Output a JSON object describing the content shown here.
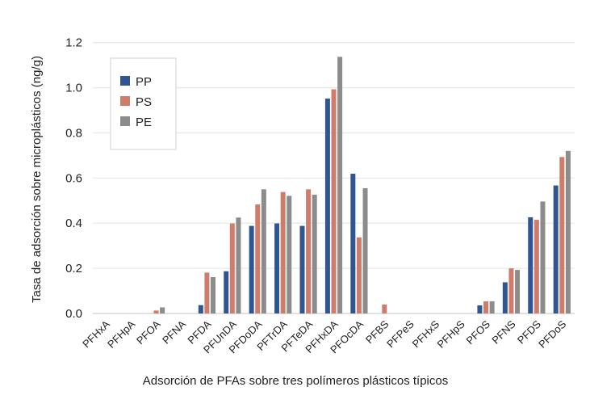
{
  "chart_data": {
    "type": "bar",
    "title": "",
    "xlabel": "Adsorción de PFAs sobre tres polímeros plásticos típicos",
    "ylabel": "Tasa de adsorción sobre microplásticos (ng/g)",
    "ylim": [
      0,
      1.2
    ],
    "yticks": [
      "0.0",
      "0.2",
      "0.4",
      "0.6",
      "0.8",
      "1.0",
      "1.2"
    ],
    "grid": true,
    "legend_position": "top-left",
    "categories": [
      "PFHxA",
      "PFHpA",
      "PFOA",
      "PFNA",
      "PFDA",
      "PFUnDA",
      "PFDoDA",
      "PFTrDA",
      "PFTeDA",
      "PFHxDA",
      "PFOcDA",
      "PFBS",
      "PFPeS",
      "PFHxS",
      "PFHpS",
      "PFOS",
      "PFNS",
      "PFDS",
      "PFDoS"
    ],
    "series": [
      {
        "name": "PP",
        "color": "#2f5690",
        "values": [
          0,
          0,
          0,
          0,
          0.037,
          0.187,
          0.388,
          0.399,
          0.388,
          0.952,
          0.619,
          0,
          0,
          0,
          0,
          0.036,
          0.138,
          0.426,
          0.567
        ]
      },
      {
        "name": "PS",
        "color": "#cf7d6a",
        "values": [
          0,
          0,
          0.013,
          0,
          0.181,
          0.399,
          0.483,
          0.538,
          0.55,
          0.993,
          0.337,
          0.04,
          0,
          0,
          0,
          0.054,
          0.2,
          0.415,
          0.693
        ]
      },
      {
        "name": "PE",
        "color": "#8c8c8c",
        "values": [
          0,
          0,
          0.027,
          0,
          0.161,
          0.425,
          0.55,
          0.521,
          0.526,
          1.137,
          0.555,
          0,
          0,
          0,
          0,
          0.054,
          0.193,
          0.496,
          0.72
        ]
      }
    ]
  }
}
